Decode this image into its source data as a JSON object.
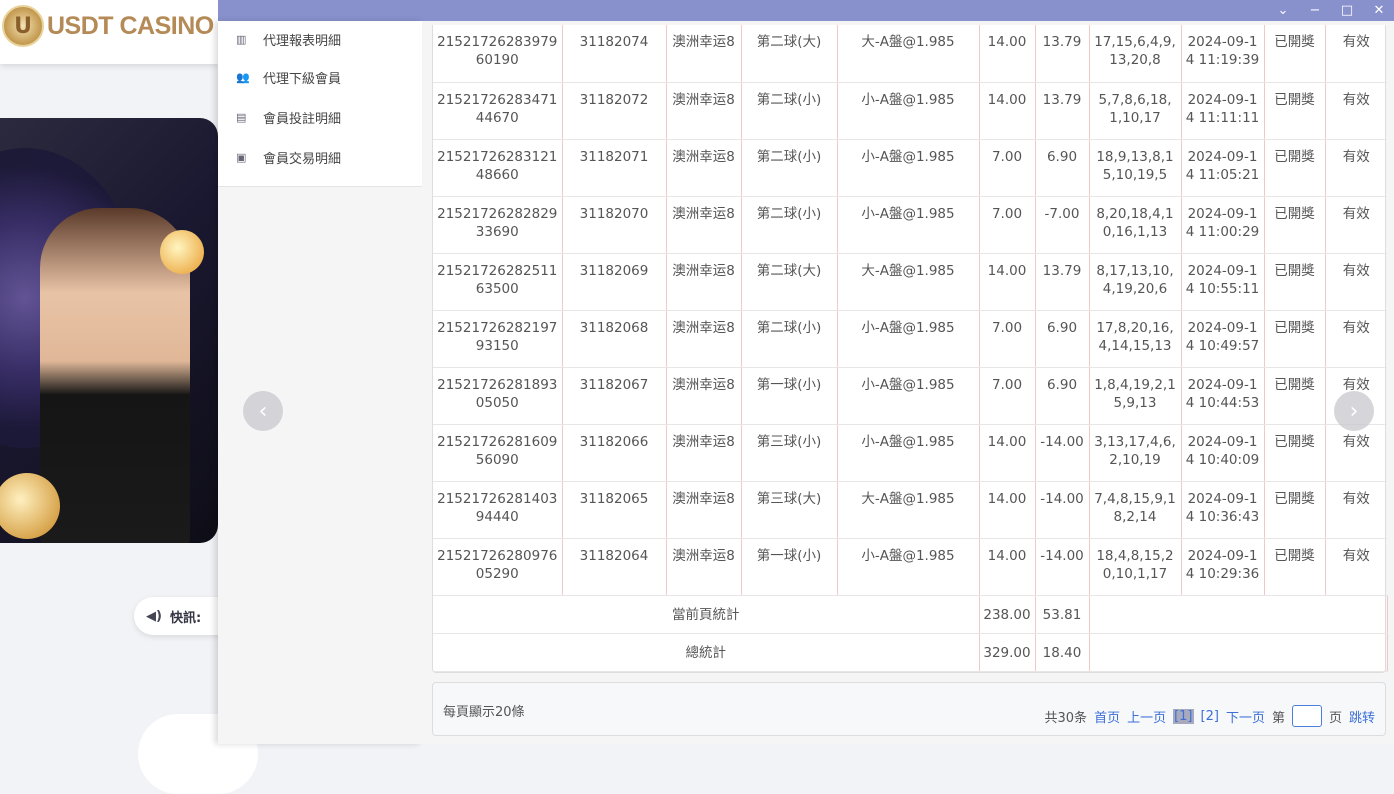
{
  "brand": {
    "logo_text": "USDT CASINO",
    "logo_letter": "U"
  },
  "news": {
    "label": "快訊:",
    "icon": "speaker-icon"
  },
  "window": {
    "minimize": "−",
    "maximize": "□",
    "close": "✕",
    "collapse": "⌄"
  },
  "menu": [
    {
      "label": "代理報表明細",
      "icon": "report-icon"
    },
    {
      "label": "代理下級會員",
      "icon": "users-icon"
    },
    {
      "label": "會員投註明細",
      "icon": "clipboard-icon"
    },
    {
      "label": "會員交易明細",
      "icon": "list-icon"
    }
  ],
  "rows": [
    [
      "2152172628397960190",
      "31182074",
      "澳洲幸运8",
      "第二球(大)",
      "大-A盤@1.985",
      "14.00",
      "13.79",
      "17,15,6,4,9,13,20,8",
      "2024-09-14 11:19:39",
      "已開獎",
      "有效"
    ],
    [
      "2152172628347144670",
      "31182072",
      "澳洲幸运8",
      "第二球(小)",
      "小-A盤@1.985",
      "14.00",
      "13.79",
      "5,7,8,6,18,1,10,17",
      "2024-09-14 11:11:11",
      "已開獎",
      "有效"
    ],
    [
      "2152172628312148660",
      "31182071",
      "澳洲幸运8",
      "第二球(小)",
      "小-A盤@1.985",
      "7.00",
      "6.90",
      "18,9,13,8,15,10,19,5",
      "2024-09-14 11:05:21",
      "已開獎",
      "有效"
    ],
    [
      "2152172628282933690",
      "31182070",
      "澳洲幸运8",
      "第二球(小)",
      "小-A盤@1.985",
      "7.00",
      "-7.00",
      "8,20,18,4,10,16,1,13",
      "2024-09-14 11:00:29",
      "已開獎",
      "有效"
    ],
    [
      "2152172628251163500",
      "31182069",
      "澳洲幸运8",
      "第二球(大)",
      "大-A盤@1.985",
      "14.00",
      "13.79",
      "8,17,13,10,4,19,20,6",
      "2024-09-14 10:55:11",
      "已開獎",
      "有效"
    ],
    [
      "2152172628219793150",
      "31182068",
      "澳洲幸运8",
      "第二球(小)",
      "小-A盤@1.985",
      "7.00",
      "6.90",
      "17,8,20,16,4,14,15,13",
      "2024-09-14 10:49:57",
      "已開獎",
      "有效"
    ],
    [
      "2152172628189305050",
      "31182067",
      "澳洲幸运8",
      "第一球(小)",
      "小-A盤@1.985",
      "7.00",
      "6.90",
      "1,8,4,19,2,15,9,13",
      "2024-09-14 10:44:53",
      "已開獎",
      "有效"
    ],
    [
      "2152172628160956090",
      "31182066",
      "澳洲幸运8",
      "第三球(小)",
      "小-A盤@1.985",
      "14.00",
      "-14.00",
      "3,13,17,4,6,2,10,19",
      "2024-09-14 10:40:09",
      "已開獎",
      "有效"
    ],
    [
      "2152172628140394440",
      "31182065",
      "澳洲幸运8",
      "第三球(大)",
      "大-A盤@1.985",
      "14.00",
      "-14.00",
      "7,4,8,15,9,18,2,14",
      "2024-09-14 10:36:43",
      "已開獎",
      "有效"
    ],
    [
      "2152172628097605290",
      "31182064",
      "澳洲幸运8",
      "第一球(小)",
      "小-A盤@1.985",
      "14.00",
      "-14.00",
      "18,4,8,15,20,10,1,17",
      "2024-09-14 10:29:36",
      "已開獎",
      "有效"
    ]
  ],
  "summary": [
    {
      "label": "當前頁統計",
      "amount": "238.00",
      "result": "53.81"
    },
    {
      "label": "總統計",
      "amount": "329.00",
      "result": "18.40"
    }
  ],
  "pager": {
    "per_page": "每頁顯示20條",
    "total": "共30条",
    "first": "首页",
    "prev": "上一页",
    "pages": [
      "[1]",
      "[2]"
    ],
    "next": "下一页",
    "goto_prefix": "第",
    "goto_suffix": "页",
    "jump": "跳转",
    "current_page": 1,
    "input_value": ""
  },
  "carousel": {
    "prev": "‹",
    "next": "›"
  }
}
